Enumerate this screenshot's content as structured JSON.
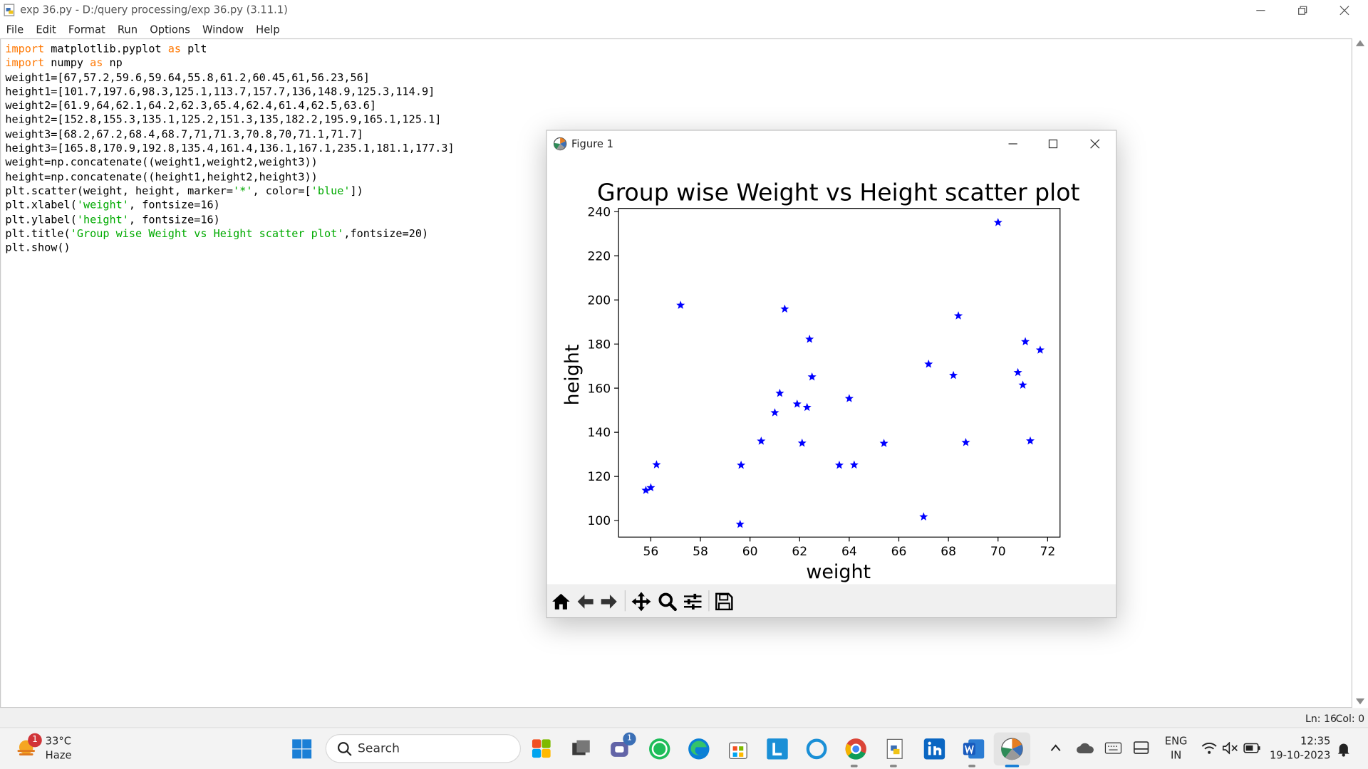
{
  "idle": {
    "window_title": "exp 36.py - D:/query processing/exp 36.py (3.11.1)",
    "menu": [
      "File",
      "Edit",
      "Format",
      "Run",
      "Options",
      "Window",
      "Help"
    ],
    "code": [
      [
        {
          "t": "import",
          "c": "kw"
        },
        {
          "t": " matplotlib.pyplot "
        },
        {
          "t": "as",
          "c": "kw"
        },
        {
          "t": " plt"
        }
      ],
      [
        {
          "t": "import",
          "c": "kw"
        },
        {
          "t": " numpy "
        },
        {
          "t": "as",
          "c": "kw"
        },
        {
          "t": " np"
        }
      ],
      [
        {
          "t": "weight1=[67,57.2,59.6,59.64,55.8,61.2,60.45,61,56.23,56]"
        }
      ],
      [
        {
          "t": "height1=[101.7,197.6,98.3,125.1,113.7,157.7,136,148.9,125.3,114.9]"
        }
      ],
      [
        {
          "t": "weight2=[61.9,64,62.1,64.2,62.3,65.4,62.4,61.4,62.5,63.6]"
        }
      ],
      [
        {
          "t": "height2=[152.8,155.3,135.1,125.2,151.3,135,182.2,195.9,165.1,125.1]"
        }
      ],
      [
        {
          "t": "weight3=[68.2,67.2,68.4,68.7,71,71.3,70.8,70,71.1,71.7]"
        }
      ],
      [
        {
          "t": "height3=[165.8,170.9,192.8,135.4,161.4,136.1,167.1,235.1,181.1,177.3]"
        }
      ],
      [
        {
          "t": "weight=np.concatenate((weight1,weight2,weight3))"
        }
      ],
      [
        {
          "t": "height=np.concatenate((height1,height2,height3))"
        }
      ],
      [
        {
          "t": "plt.scatter(weight, height, marker="
        },
        {
          "t": "'*'",
          "c": "str"
        },
        {
          "t": ", color=["
        },
        {
          "t": "'blue'",
          "c": "str"
        },
        {
          "t": "])"
        }
      ],
      [
        {
          "t": "plt.xlabel("
        },
        {
          "t": "'weight'",
          "c": "str"
        },
        {
          "t": ", fontsize=16)"
        }
      ],
      [
        {
          "t": "plt.ylabel("
        },
        {
          "t": "'height'",
          "c": "str"
        },
        {
          "t": ", fontsize=16)"
        }
      ],
      [
        {
          "t": "plt.title("
        },
        {
          "t": "'Group wise Weight vs Height scatter plot'",
          "c": "str"
        },
        {
          "t": ",fontsize=20)"
        }
      ],
      [
        {
          "t": "plt.show()"
        }
      ]
    ],
    "status_ln": "Ln: 16",
    "status_col": "Col: 0"
  },
  "figure": {
    "window_title": "Figure 1"
  },
  "chart_data": {
    "type": "scatter",
    "title": "Group wise Weight vs Height scatter plot",
    "xlabel": "weight",
    "ylabel": "height",
    "xlim": [
      54.7,
      72.5
    ],
    "ylim": [
      92.5,
      241.5
    ],
    "xticks": [
      56,
      58,
      60,
      62,
      64,
      66,
      68,
      70,
      72
    ],
    "yticks": [
      100,
      120,
      140,
      160,
      180,
      200,
      220,
      240
    ],
    "marker": "star",
    "color": "#0000ff",
    "grid": false,
    "x": [
      67,
      57.2,
      59.6,
      59.64,
      55.8,
      61.2,
      60.45,
      61,
      56.23,
      56,
      61.9,
      64,
      62.1,
      64.2,
      62.3,
      65.4,
      62.4,
      61.4,
      62.5,
      63.6,
      68.2,
      67.2,
      68.4,
      68.7,
      71,
      71.3,
      70.8,
      70,
      71.1,
      71.7
    ],
    "y": [
      101.7,
      197.6,
      98.3,
      125.1,
      113.7,
      157.7,
      136,
      148.9,
      125.3,
      114.9,
      152.8,
      155.3,
      135.1,
      125.2,
      151.3,
      135,
      182.2,
      195.9,
      165.1,
      125.1,
      165.8,
      170.9,
      192.8,
      135.4,
      161.4,
      136.1,
      167.1,
      235.1,
      181.1,
      177.3
    ]
  },
  "taskbar": {
    "weather_temp": "33°C",
    "weather_condition": "Haze",
    "weather_badge": "1",
    "search_label": "Search",
    "teams_badge": "1",
    "language": "ENG",
    "region": "IN",
    "time": "12:35",
    "date": "19-10-2023"
  }
}
